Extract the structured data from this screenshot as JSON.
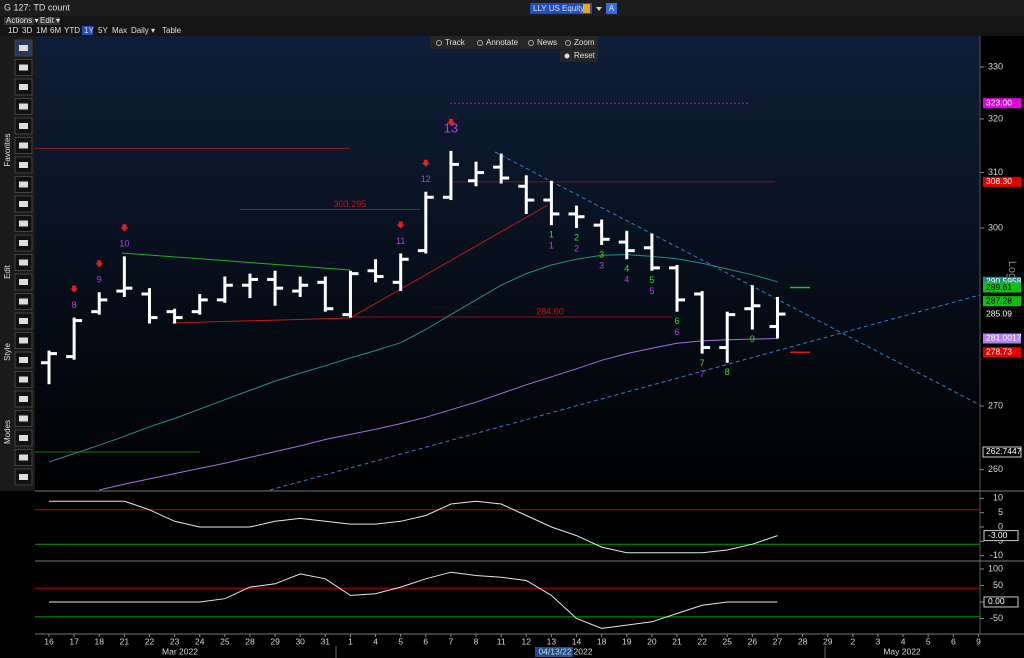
{
  "window": {
    "title": "G 127: TD count",
    "security": "LLY US Equity",
    "badge": "A"
  },
  "menu": [
    "Actions ▾",
    "Edit ▾"
  ],
  "ranges": [
    "1D",
    "3D",
    "1M",
    "6M",
    "YTD",
    "1Y",
    "5Y",
    "Max",
    "Daily ▾",
    "Table"
  ],
  "tools": [
    "Track",
    "Annotate",
    "News",
    "Zoom"
  ],
  "reset": "Reset",
  "sidebar": [
    "Favorites",
    "Edit",
    "Style",
    "Modes"
  ],
  "chart_data": [
    {
      "type": "ohlc",
      "scale": "log",
      "axis_label": "Log",
      "color": "#ffffff",
      "categories": [
        "16",
        "17",
        "18",
        "21",
        "22",
        "23",
        "24",
        "25",
        "28",
        "29",
        "30",
        "31",
        "1",
        "4",
        "5",
        "6",
        "7",
        "8",
        "11",
        "12",
        "13",
        "14",
        "18",
        "19",
        "20",
        "21",
        "22",
        "25",
        "26",
        "27",
        "28",
        "29",
        "2",
        "3",
        "4",
        "5",
        "6",
        "9"
      ],
      "month_labels": [
        "Mar 2022",
        "04/13/22",
        "2022",
        "May 2022"
      ],
      "ylim": [
        256.9,
        336.1
      ],
      "yticks": [
        260,
        270,
        300,
        310,
        320,
        330
      ],
      "open": [
        277,
        278,
        285.5,
        289,
        288.5,
        285.5,
        285.5,
        287.5,
        290,
        291,
        289,
        290.5,
        285,
        292.5,
        290.5,
        296,
        305.5,
        308.5,
        311,
        307.5,
        305,
        302.5,
        300.5,
        297.5,
        296.5,
        293,
        288.5,
        279.5,
        286,
        283,
        null,
        null,
        null,
        null,
        null,
        null,
        null,
        null
      ],
      "high": [
        279,
        284.5,
        288.8,
        295,
        289.5,
        286,
        288.5,
        291.5,
        292,
        292.5,
        291.5,
        291.5,
        292.5,
        294.5,
        295.5,
        306.5,
        314,
        312,
        313.5,
        309.5,
        308.5,
        304,
        301.5,
        299.5,
        299,
        293.5,
        289,
        285.5,
        290,
        288,
        null,
        null,
        null,
        null,
        null,
        null,
        null,
        null
      ],
      "low": [
        273.5,
        277.5,
        285,
        288,
        283.5,
        283.5,
        285,
        287,
        287.8,
        286.5,
        288,
        285.5,
        284.5,
        290.5,
        289,
        295.5,
        305,
        307.5,
        308,
        302.5,
        300.5,
        300,
        297,
        294.5,
        292.5,
        285.5,
        278.5,
        277,
        282.5,
        281,
        null,
        null,
        null,
        null,
        null,
        null,
        null,
        null
      ],
      "close": [
        278.5,
        284,
        287.5,
        289.5,
        284.5,
        284.5,
        287.5,
        290,
        291,
        289.5,
        290,
        286,
        292,
        291.5,
        294.5,
        305.5,
        311.5,
        310,
        309,
        305,
        302.5,
        302,
        298,
        296,
        293,
        287.5,
        279.5,
        285,
        286.5,
        285.09,
        null,
        null,
        null,
        null,
        null,
        null,
        null,
        null
      ],
      "moving_averages": [
        {
          "color": "#2a8c8c",
          "values": [
            261.2,
            262.5,
            263.8,
            265.2,
            266.7,
            268.0,
            269.5,
            271.0,
            272.5,
            274.0,
            275.3,
            276.5,
            277.8,
            279.0,
            280.3,
            282.5,
            285.0,
            287.5,
            290.0,
            292.0,
            293.5,
            294.5,
            295.2,
            295.3,
            295.0,
            294.6,
            293.8,
            292.8,
            291.8,
            290.6,
            null,
            null,
            null,
            null,
            null,
            null,
            null,
            null
          ]
        },
        {
          "color": "#a070e0",
          "values": [
            null,
            null,
            256.9,
            257.8,
            258.6,
            259.4,
            260.2,
            261.0,
            261.9,
            262.8,
            263.7,
            264.7,
            265.5,
            266.3,
            267.2,
            268.2,
            269.4,
            270.6,
            272.0,
            273.4,
            274.7,
            276.0,
            277.4,
            278.5,
            279.4,
            280.2,
            280.6,
            280.8,
            280.9,
            281.0,
            null,
            null,
            null,
            null,
            null,
            null,
            null,
            null
          ]
        }
      ],
      "sell_setup": [
        null,
        "8",
        "9",
        "10",
        null,
        null,
        null,
        null,
        null,
        null,
        null,
        null,
        null,
        null,
        "11",
        "12",
        "13",
        null,
        null,
        null,
        null,
        null,
        null,
        null,
        null,
        null,
        null,
        null,
        null,
        null,
        null,
        null,
        null,
        null,
        null,
        null,
        null,
        null
      ],
      "buy_setup": [
        null,
        null,
        null,
        null,
        null,
        null,
        null,
        null,
        null,
        null,
        null,
        null,
        null,
        null,
        null,
        null,
        null,
        null,
        null,
        null,
        "1",
        "2",
        "3",
        "4",
        "5",
        "6",
        "7",
        "8",
        "9",
        null,
        null,
        null,
        null,
        null,
        null,
        null,
        null,
        null
      ],
      "buy_countdown": [
        null,
        null,
        null,
        null,
        null,
        null,
        null,
        null,
        null,
        null,
        null,
        null,
        null,
        null,
        null,
        null,
        null,
        null,
        null,
        null,
        "1",
        "2",
        "3",
        "4",
        "5",
        "6",
        "7",
        null,
        null,
        null,
        null,
        null,
        null,
        null,
        null,
        null,
        null,
        null
      ],
      "sell_color": "#b040e0",
      "buy_color": "#30e030",
      "levels": [
        {
          "value": 314.5,
          "color": "#c01818"
        },
        {
          "value": 303.295,
          "label": "303.295",
          "color": "#c01818"
        },
        {
          "value": 284.6,
          "label": "284.60",
          "color": "#c01818"
        },
        {
          "value": 323,
          "color": "#c020e0"
        },
        {
          "value": 308.3,
          "color": "#a01818"
        },
        {
          "value": 262.7447,
          "color": "#20a020"
        },
        {
          "value": 289.61,
          "color": "#20c020"
        },
        {
          "value": 278.73,
          "color": "#d01818"
        }
      ],
      "price_labels": [
        {
          "value": 323,
          "label": "323.00",
          "color": "#e000e0"
        },
        {
          "value": 308.3,
          "label": "308.30",
          "color": "#e00000"
        },
        {
          "value": 290.5958,
          "label": "290.5958",
          "color": "#1a8c8c"
        },
        {
          "value": 289.61,
          "label": "289.61",
          "color": "#10c010"
        },
        {
          "value": 287.28,
          "label": "287.28",
          "color": "#10c010"
        },
        {
          "value": 285.09,
          "label": "285.09",
          "color": "#000000"
        },
        {
          "value": 281.0017,
          "label": "281.0017",
          "color": "#b080f0"
        },
        {
          "value": 278.73,
          "label": "278.73",
          "color": "#e00000"
        },
        {
          "value": 262.7447,
          "label": "262.7447",
          "color": "#000000"
        }
      ]
    },
    {
      "type": "line",
      "color": "#e8e8e8",
      "ylim": [
        -11.5,
        11.5
      ],
      "yticks": [
        10,
        5,
        0,
        -5,
        -10
      ],
      "values": [
        9,
        9,
        9,
        9,
        6,
        2,
        0,
        0,
        0,
        2,
        3,
        2,
        1,
        1,
        2,
        4,
        8,
        9,
        8,
        4,
        0,
        -3,
        -7,
        -9,
        -9,
        -9,
        -9,
        -8,
        -6,
        -3,
        null,
        null,
        null,
        null,
        null,
        null,
        null,
        null
      ],
      "ref_lines": [
        {
          "value": 6,
          "color": "#d00000"
        },
        {
          "value": -6,
          "color": "#00a000"
        }
      ],
      "last_label": {
        "value": -3,
        "label": "-3.00"
      }
    },
    {
      "type": "line",
      "color": "#e8e8e8",
      "ylim": [
        -91,
        118
      ],
      "yticks": [
        100,
        50,
        0,
        -50
      ],
      "values": [
        0,
        0,
        0,
        0,
        0,
        0,
        0,
        10,
        45,
        55,
        85,
        70,
        20,
        25,
        45,
        70,
        90,
        80,
        75,
        65,
        20,
        -50,
        -80,
        -70,
        -60,
        -35,
        -10,
        0,
        0,
        0,
        null,
        null,
        null,
        null,
        null,
        null,
        null,
        null
      ],
      "ref_lines": [
        {
          "value": 42,
          "color": "#d00000"
        },
        {
          "value": -45,
          "color": "#00a000"
        }
      ],
      "last_label": {
        "value": 0,
        "label": "0.00"
      }
    }
  ]
}
